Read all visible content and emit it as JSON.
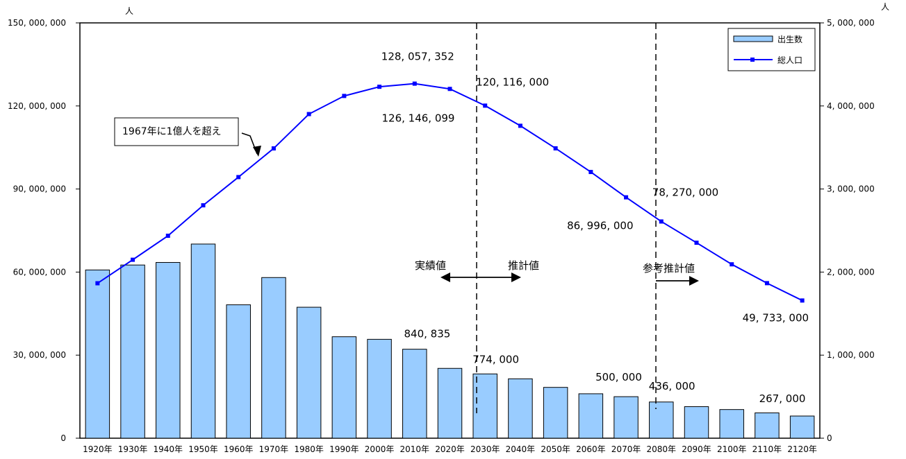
{
  "chart_data": {
    "type": "bar",
    "y_unit_left": "人",
    "y_unit_right": "人",
    "categories": [
      "1920年",
      "1930年",
      "1940年",
      "1950年",
      "1960年",
      "1970年",
      "1980年",
      "1990年",
      "2000年",
      "2010年",
      "2020年",
      "2030年",
      "2040年",
      "2050年",
      "2060年",
      "2070年",
      "2080年",
      "2090年",
      "2100年",
      "2110年",
      "2120年"
    ],
    "left_axis": {
      "ylim": [
        0,
        150000000
      ],
      "ticks": [
        "0",
        "30, 000, 000",
        "60, 000, 000",
        "90, 000, 000",
        "120, 000, 000",
        "150, 000, 000"
      ]
    },
    "right_axis": {
      "ylim": [
        0,
        5000000
      ],
      "ticks": [
        "0",
        "1, 000, 000",
        "2, 000, 000",
        "3, 000, 000",
        "4, 000, 000",
        "5, 000, 000"
      ]
    },
    "series": [
      {
        "name": "出生数",
        "type": "bar",
        "axis": "right",
        "color": "#99ccff",
        "values": [
          2025564,
          2085101,
          2115867,
          2337507,
          1606041,
          1934239,
          1576889,
          1221585,
          1190547,
          1071305,
          840835,
          774000,
          715000,
          612000,
          535000,
          500000,
          436000,
          380000,
          345000,
          305000,
          267000
        ]
      },
      {
        "name": "総人口",
        "type": "line",
        "axis": "left",
        "color": "#0000ff",
        "values": [
          55963053,
          64450005,
          73114308,
          84114574,
          94301623,
          104665171,
          117060396,
          123611167,
          126925843,
          128057352,
          126146099,
          120116000,
          112837000,
          104686000,
          96148000,
          86996000,
          78270000,
          70600000,
          62800000,
          56000000,
          49733000
        ]
      }
    ],
    "data_labels": [
      {
        "text": "128, 057, 352",
        "category": "2010年",
        "series": "総人口"
      },
      {
        "text": "126, 146, 099",
        "category": "2020年",
        "series": "総人口"
      },
      {
        "text": "120, 116, 000",
        "category": "2030年",
        "series": "総人口"
      },
      {
        "text": "86, 996, 000",
        "category": "2070年",
        "series": "総人口"
      },
      {
        "text": "78, 270, 000",
        "category": "2080年",
        "series": "総人口"
      },
      {
        "text": "49, 733, 000",
        "category": "2120年",
        "series": "総人口"
      },
      {
        "text": "840, 835",
        "category": "2020年",
        "series": "出生数"
      },
      {
        "text": "774, 000",
        "category": "2030年",
        "series": "出生数"
      },
      {
        "text": "500, 000",
        "category": "2070年",
        "series": "出生数"
      },
      {
        "text": "436, 000",
        "category": "2080年",
        "series": "出生数"
      },
      {
        "text": "267, 000",
        "category": "2120年",
        "series": "出生数"
      }
    ],
    "annotations": {
      "callout": "1967年に1億人を超え",
      "actual": "実績値",
      "projected": "推計値",
      "reference": "参考推計値"
    },
    "legend": {
      "placement": "top-right"
    },
    "grid": false
  }
}
